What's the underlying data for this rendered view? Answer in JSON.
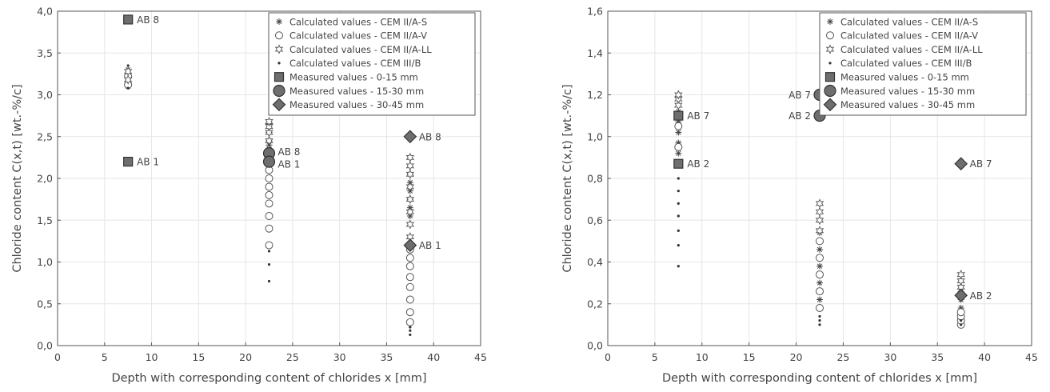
{
  "chart_data": [
    {
      "type": "scatter",
      "xlabel": "Depth with corresponding content of chlorides x [mm]",
      "ylabel": "Chloride content C(x,t) [wt.-%/c]",
      "xlim": [
        0,
        45
      ],
      "ylim": [
        0,
        4.0
      ],
      "xticks": [
        "0",
        "5",
        "10",
        "15",
        "20",
        "25",
        "30",
        "35",
        "40",
        "45"
      ],
      "yticks": [
        "0,0",
        "0,5",
        "1,0",
        "1,5",
        "2,0",
        "2,5",
        "3,0",
        "3,5",
        "4,0"
      ],
      "grid": true,
      "legend_position": "top-right",
      "series": [
        {
          "name": "Calculated values - CEM II/A-S",
          "marker": "asterisk",
          "x": [
            7.5,
            7.5,
            7.5,
            7.5,
            7.5,
            22.5,
            22.5,
            22.5,
            22.5,
            22.5,
            22.5,
            22.5,
            22.5,
            37.5,
            37.5,
            37.5,
            37.5,
            37.5,
            37.5
          ],
          "y": [
            3.1,
            3.15,
            3.2,
            3.25,
            3.3,
            2.15,
            2.25,
            2.35,
            2.45,
            2.55,
            2.65,
            2.3,
            2.4,
            1.55,
            1.65,
            1.75,
            1.85,
            1.95,
            2.05
          ]
        },
        {
          "name": "Calculated values - CEM II/A-V",
          "marker": "circle",
          "x": [
            7.5,
            7.5,
            22.5,
            22.5,
            22.5,
            22.5,
            22.5,
            22.5,
            22.5,
            22.5,
            37.5,
            37.5,
            37.5,
            37.5,
            37.5,
            37.5,
            37.5,
            37.5
          ],
          "y": [
            3.12,
            3.22,
            1.2,
            1.4,
            1.55,
            1.7,
            1.8,
            1.9,
            2.0,
            2.1,
            0.28,
            0.4,
            0.55,
            0.7,
            0.82,
            0.95,
            1.05,
            1.15
          ]
        },
        {
          "name": "Calculated values - CEM II/A-LL",
          "marker": "star",
          "x": [
            7.5,
            7.5,
            22.5,
            22.5,
            22.5,
            22.5,
            37.5,
            37.5,
            37.5,
            37.5,
            37.5,
            37.5,
            37.5,
            37.5
          ],
          "y": [
            3.18,
            3.28,
            2.45,
            2.55,
            2.62,
            2.68,
            1.3,
            1.45,
            1.6,
            1.75,
            1.9,
            2.05,
            2.15,
            2.25
          ]
        },
        {
          "name": "Calculated values - CEM III/B",
          "marker": "dot",
          "x": [
            7.5,
            7.5,
            22.5,
            22.5,
            22.5,
            37.5,
            37.5,
            37.5
          ],
          "y": [
            3.08,
            3.35,
            0.77,
            0.97,
            1.13,
            0.13,
            0.18,
            0.22
          ]
        },
        {
          "name": "Measured values - 0-15 mm",
          "marker": "square",
          "x": [
            7.5,
            7.5
          ],
          "y": [
            3.9,
            2.2
          ],
          "labels": [
            "AB 8",
            "AB 1"
          ]
        },
        {
          "name": "Measured values - 15-30 mm",
          "marker": "circle-filled",
          "x": [
            22.5,
            22.5
          ],
          "y": [
            2.3,
            2.2
          ],
          "labels": [
            "AB 8",
            "AB 1"
          ]
        },
        {
          "name": "Measured values - 30-45 mm",
          "marker": "diamond",
          "x": [
            37.5,
            37.5
          ],
          "y": [
            2.5,
            1.2
          ],
          "labels": [
            "AB 8",
            "AB 1"
          ]
        }
      ]
    },
    {
      "type": "scatter",
      "xlabel": "Depth with corresponding content of chlorides x [mm]",
      "ylabel": "Chloride content C(x,t) [wt.-%/c]",
      "xlim": [
        0,
        45
      ],
      "ylim": [
        0,
        1.6
      ],
      "xticks": [
        "0",
        "5",
        "10",
        "15",
        "20",
        "25",
        "30",
        "35",
        "40",
        "45"
      ],
      "yticks": [
        "0,0",
        "0,2",
        "0,4",
        "0,6",
        "0,8",
        "1,0",
        "1,2",
        "1,4",
        "1,6"
      ],
      "grid": true,
      "legend_position": "top-right",
      "series": [
        {
          "name": "Calculated values - CEM II/A-S",
          "marker": "asterisk",
          "x": [
            7.5,
            7.5,
            7.5,
            7.5,
            7.5,
            22.5,
            22.5,
            22.5,
            22.5,
            22.5,
            37.5,
            37.5,
            37.5,
            37.5
          ],
          "y": [
            0.92,
            0.97,
            1.02,
            1.07,
            1.12,
            0.22,
            0.3,
            0.38,
            0.46,
            0.54,
            0.14,
            0.18,
            0.22,
            0.26
          ]
        },
        {
          "name": "Calculated values - CEM II/A-V",
          "marker": "circle",
          "x": [
            7.5,
            7.5,
            22.5,
            22.5,
            22.5,
            22.5,
            22.5,
            37.5,
            37.5,
            37.5,
            37.5
          ],
          "y": [
            0.95,
            1.05,
            0.18,
            0.26,
            0.34,
            0.42,
            0.5,
            0.1,
            0.12,
            0.14,
            0.16
          ]
        },
        {
          "name": "Calculated values - CEM II/A-LL",
          "marker": "star",
          "x": [
            7.5,
            7.5,
            7.5,
            22.5,
            22.5,
            22.5,
            22.5,
            37.5,
            37.5,
            37.5
          ],
          "y": [
            1.15,
            1.18,
            1.2,
            0.55,
            0.6,
            0.64,
            0.68,
            0.28,
            0.31,
            0.34
          ]
        },
        {
          "name": "Calculated values - CEM III/B",
          "marker": "dot",
          "x": [
            7.5,
            7.5,
            7.5,
            7.5,
            7.5,
            7.5,
            7.5,
            22.5,
            22.5,
            22.5,
            37.5,
            37.5
          ],
          "y": [
            0.38,
            0.48,
            0.55,
            0.62,
            0.68,
            0.74,
            0.8,
            0.1,
            0.12,
            0.14,
            0.1,
            0.12
          ]
        },
        {
          "name": "Measured values - 0-15 mm",
          "marker": "square",
          "x": [
            7.5,
            7.5
          ],
          "y": [
            1.1,
            0.87
          ],
          "labels": [
            "AB 7",
            "AB 2"
          ]
        },
        {
          "name": "Measured values - 15-30 mm",
          "marker": "circle-filled",
          "x": [
            22.5,
            22.5
          ],
          "y": [
            1.2,
            1.1
          ],
          "labels": [
            "AB 7",
            "AB 2"
          ]
        },
        {
          "name": "Measured values - 30-45 mm",
          "marker": "diamond",
          "x": [
            37.5,
            37.5
          ],
          "y": [
            0.87,
            0.24
          ],
          "labels": [
            "AB 7",
            "AB 2"
          ]
        }
      ]
    }
  ],
  "colors": {
    "marker_fill": "#6e6e6e",
    "marker_stroke": "#333333",
    "grid": "#e6e6e6",
    "axis": "#555555",
    "text": "#444444"
  }
}
